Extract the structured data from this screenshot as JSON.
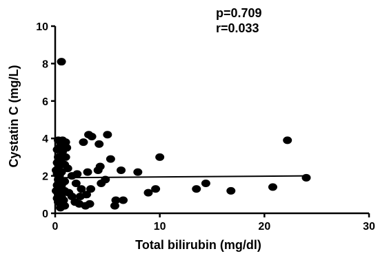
{
  "chart_data": {
    "type": "scatter",
    "title": "",
    "xlabel": "Total bilirubin (mg/dl)",
    "ylabel": "Cystatin C (mg/L)",
    "xlim": [
      0,
      30
    ],
    "ylim": [
      0,
      10
    ],
    "x_ticks": [
      "0",
      "10",
      "20",
      "30"
    ],
    "y_ticks": [
      "0",
      "2",
      "4",
      "6",
      "8",
      "10"
    ],
    "grid": false,
    "annotations": [
      "p=0.709",
      "r=0.033"
    ],
    "regression_line": {
      "x": [
        0.0,
        24.0
      ],
      "y": [
        1.9,
        2.0
      ]
    },
    "points": [
      {
        "x": 0.6,
        "y": 8.1
      },
      {
        "x": 22.2,
        "y": 3.9
      },
      {
        "x": 24.0,
        "y": 1.9
      },
      {
        "x": 20.8,
        "y": 1.4
      },
      {
        "x": 16.8,
        "y": 1.2
      },
      {
        "x": 14.4,
        "y": 1.6
      },
      {
        "x": 13.5,
        "y": 1.3
      },
      {
        "x": 10.0,
        "y": 3.0
      },
      {
        "x": 9.6,
        "y": 1.3
      },
      {
        "x": 8.9,
        "y": 1.1
      },
      {
        "x": 7.9,
        "y": 2.2
      },
      {
        "x": 6.3,
        "y": 2.3
      },
      {
        "x": 6.5,
        "y": 0.7
      },
      {
        "x": 5.8,
        "y": 0.7
      },
      {
        "x": 5.7,
        "y": 0.4
      },
      {
        "x": 5.0,
        "y": 4.2
      },
      {
        "x": 5.3,
        "y": 2.9
      },
      {
        "x": 4.8,
        "y": 1.8
      },
      {
        "x": 4.4,
        "y": 1.6
      },
      {
        "x": 4.3,
        "y": 2.5
      },
      {
        "x": 4.1,
        "y": 2.3
      },
      {
        "x": 4.2,
        "y": 3.7
      },
      {
        "x": 3.5,
        "y": 4.1
      },
      {
        "x": 3.2,
        "y": 4.2
      },
      {
        "x": 3.1,
        "y": 2.2
      },
      {
        "x": 3.4,
        "y": 1.3
      },
      {
        "x": 3.0,
        "y": 1.0
      },
      {
        "x": 3.3,
        "y": 0.5
      },
      {
        "x": 2.9,
        "y": 0.4
      },
      {
        "x": 2.7,
        "y": 3.8
      },
      {
        "x": 2.5,
        "y": 1.3
      },
      {
        "x": 2.4,
        "y": 0.9
      },
      {
        "x": 2.3,
        "y": 0.5
      },
      {
        "x": 2.1,
        "y": 2.1
      },
      {
        "x": 2.0,
        "y": 1.6
      },
      {
        "x": 1.9,
        "y": 0.6
      },
      {
        "x": 1.6,
        "y": 2.0
      },
      {
        "x": 1.6,
        "y": 0.9
      },
      {
        "x": 1.3,
        "y": 1.1
      },
      {
        "x": 1.2,
        "y": 2.4
      },
      {
        "x": 1.1,
        "y": 3.5
      },
      {
        "x": 1.0,
        "y": 3.8
      },
      {
        "x": 1.0,
        "y": 3.0
      },
      {
        "x": 0.9,
        "y": 2.6
      },
      {
        "x": 0.9,
        "y": 1.7
      },
      {
        "x": 0.9,
        "y": 1.2
      },
      {
        "x": 0.8,
        "y": 0.7
      },
      {
        "x": 0.7,
        "y": 3.9
      },
      {
        "x": 0.7,
        "y": 3.3
      },
      {
        "x": 0.6,
        "y": 2.2
      },
      {
        "x": 0.6,
        "y": 1.5
      },
      {
        "x": 0.6,
        "y": 0.9
      },
      {
        "x": 0.5,
        "y": 0.5
      },
      {
        "x": 0.5,
        "y": 3.6
      },
      {
        "x": 0.5,
        "y": 2.8
      },
      {
        "x": 0.4,
        "y": 2.0
      },
      {
        "x": 0.4,
        "y": 1.3
      },
      {
        "x": 0.4,
        "y": 0.7
      },
      {
        "x": 0.3,
        "y": 3.9
      },
      {
        "x": 0.3,
        "y": 3.0
      },
      {
        "x": 0.3,
        "y": 2.4
      },
      {
        "x": 0.3,
        "y": 1.8
      },
      {
        "x": 0.3,
        "y": 1.0
      },
      {
        "x": 0.3,
        "y": 0.6
      },
      {
        "x": 0.2,
        "y": 3.4
      },
      {
        "x": 0.2,
        "y": 2.7
      },
      {
        "x": 0.2,
        "y": 2.1
      },
      {
        "x": 0.2,
        "y": 1.5
      },
      {
        "x": 0.2,
        "y": 0.8
      },
      {
        "x": 0.1,
        "y": 1.2
      },
      {
        "x": 0.1,
        "y": 2.3
      },
      {
        "x": 0.5,
        "y": 0.3
      },
      {
        "x": 0.9,
        "y": 0.4
      }
    ]
  }
}
